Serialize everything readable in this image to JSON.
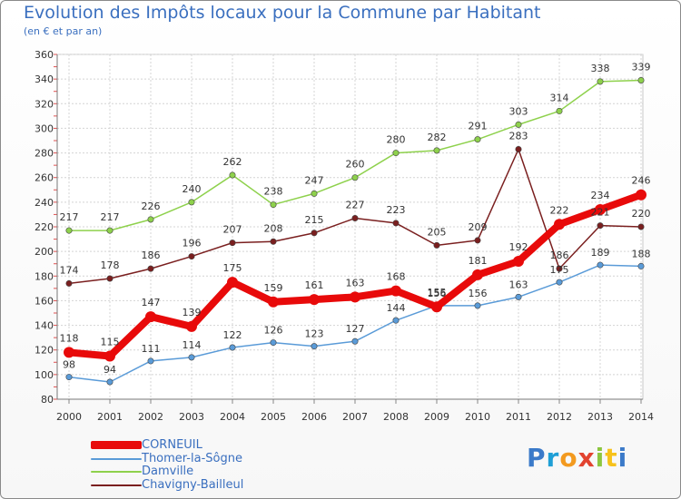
{
  "header": {
    "title": "Evolution des Impôts locaux pour la Commune par Habitant",
    "subtitle": "(en € et par an)"
  },
  "logo": {
    "text": "Proxiti",
    "letters": [
      "P",
      "r",
      "o",
      "x",
      "i",
      "t",
      "i"
    ],
    "colors": [
      "#3b7ac9",
      "#1f9fd6",
      "#f39a1f",
      "#e2432f",
      "#8cc63f",
      "#f7c21b",
      "#3b7ac9"
    ]
  },
  "chart_data": {
    "type": "line",
    "title": "Evolution des Impôts locaux pour la Commune par Habitant",
    "subtitle": "(en € et par an)",
    "xlabel": "",
    "ylabel": "",
    "x": [
      "2000",
      "2001",
      "2002",
      "2003",
      "2004",
      "2005",
      "2006",
      "2007",
      "2008",
      "2009",
      "2010",
      "2011",
      "2012",
      "2013",
      "2014"
    ],
    "ylim": [
      80,
      360
    ],
    "yticks": [
      80,
      100,
      120,
      140,
      160,
      180,
      200,
      220,
      240,
      260,
      280,
      300,
      320,
      340,
      360
    ],
    "ytick_labels": [
      "80",
      "100",
      "120",
      "140",
      "160",
      "180",
      "200",
      "220",
      "240",
      "260",
      "280",
      "300",
      "320",
      "340",
      "360"
    ],
    "grid": true,
    "legend_position": "bottom-left",
    "series": [
      {
        "name": "CORNEUIL",
        "color": "#e80a0a",
        "labels": [
          "118",
          "115",
          "147",
          "139",
          "175",
          "159",
          "161",
          "163",
          "168",
          "155",
          "181",
          "192",
          "222",
          "234",
          "246"
        ],
        "values": [
          118,
          115,
          147,
          139,
          175,
          159,
          161,
          163,
          168,
          155,
          181,
          192,
          222,
          234,
          246
        ]
      },
      {
        "name": "Thomer-la-Sôgne",
        "color": "#5a9bd8",
        "labels": [
          "98",
          "94",
          "111",
          "114",
          "122",
          "126",
          "123",
          "127",
          "144",
          "156",
          "156",
          "163",
          "175",
          "189",
          "188"
        ],
        "values": [
          98,
          94,
          111,
          114,
          122,
          126,
          123,
          127,
          144,
          156,
          156,
          163,
          175,
          189,
          188
        ]
      },
      {
        "name": "Damville",
        "color": "#8ed14c",
        "labels": [
          "217",
          "217",
          "226",
          "240",
          "262",
          "238",
          "247",
          "260",
          "280",
          "282",
          "291",
          "303",
          "314",
          "338",
          "339"
        ],
        "values": [
          217,
          217,
          226,
          240,
          262,
          238,
          247,
          260,
          280,
          282,
          291,
          303,
          314,
          338,
          339
        ]
      },
      {
        "name": "Chavigny-Bailleul",
        "color": "#7a1f1f",
        "labels": [
          "174",
          "178",
          "186",
          "196",
          "207",
          "208",
          "215",
          "227",
          "223",
          "205",
          "209",
          "283",
          "186",
          "221",
          "220"
        ],
        "values": [
          174,
          178,
          186,
          196,
          207,
          208,
          215,
          227,
          223,
          205,
          209,
          283,
          186,
          221,
          220
        ]
      }
    ]
  }
}
